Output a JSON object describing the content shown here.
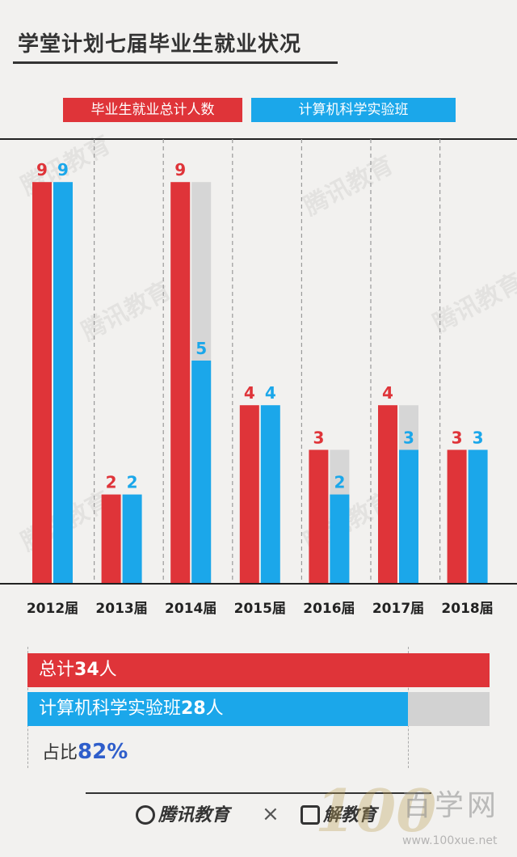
{
  "title": "学堂计划七届毕业生就业状况",
  "colors": {
    "red": "#df3439",
    "blue": "#1ba7ea",
    "gray": "#d6d6d6",
    "ratio": "#2f5ecb"
  },
  "chart_data": {
    "type": "bar",
    "categories": [
      "2012届",
      "2013届",
      "2014届",
      "2015届",
      "2016届",
      "2017届",
      "2018届"
    ],
    "series": [
      {
        "name": "毕业生就业总计人数",
        "color": "#df3439",
        "values": [
          9,
          2,
          9,
          4,
          3,
          4,
          3
        ]
      },
      {
        "name": "计算机科学实验班",
        "color": "#1ba7ea",
        "values": [
          9,
          2,
          5,
          4,
          2,
          3,
          3
        ]
      }
    ],
    "ylim": [
      0,
      10
    ],
    "grid": "dashed vertical separators",
    "legend": "top"
  },
  "summary": {
    "total_prefix": "总计",
    "total_value": "34",
    "total_unit": "人",
    "total_count": 34,
    "cs_prefix": "计算机科学实验班",
    "cs_value": "28",
    "cs_unit": "人",
    "cs_count": 28,
    "ratio_prefix": "占比",
    "ratio_value": "82%"
  },
  "watermark_text": "腾讯教育",
  "footer": {
    "logo1_text": "腾讯教育",
    "times": "×",
    "logo2_text": "解教育"
  },
  "corner": {
    "num": "100",
    "cn": "百学网",
    "url": "www.100xue.net"
  }
}
